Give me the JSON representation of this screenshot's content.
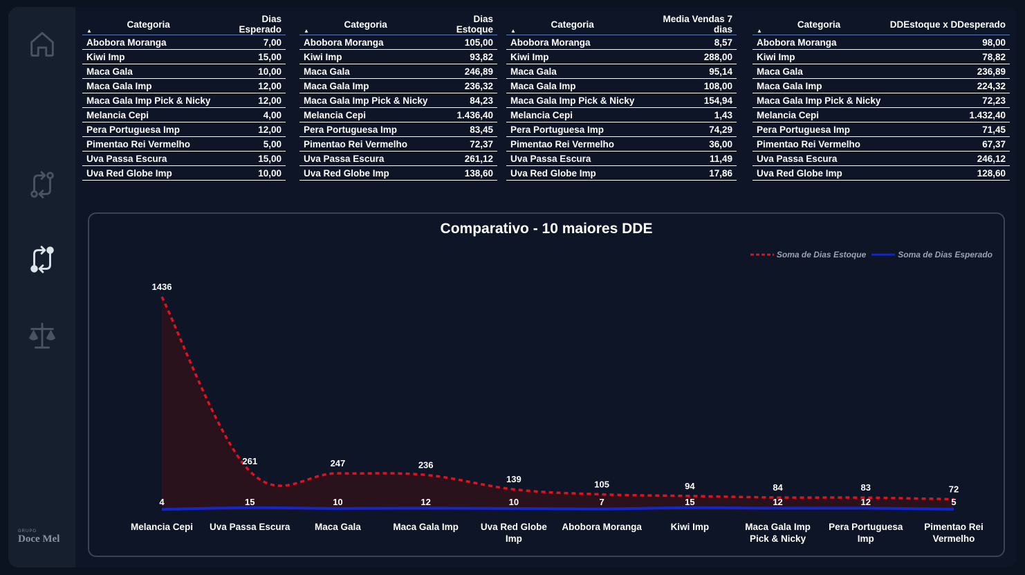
{
  "brand": {
    "small": "GRUPO",
    "name": "Doce Mel"
  },
  "sidebar": {
    "items": [
      {
        "icon": "home-icon"
      },
      {
        "icon": "swap-icon"
      },
      {
        "icon": "swap-active-icon"
      },
      {
        "icon": "scale-icon"
      }
    ]
  },
  "tables": [
    {
      "col1": "Categoria",
      "col2": "Dias Esperado",
      "rows": [
        [
          "Abobora Moranga",
          "7,00"
        ],
        [
          "Kiwi Imp",
          "15,00"
        ],
        [
          "Maca Gala",
          "10,00"
        ],
        [
          "Maca Gala Imp",
          "12,00"
        ],
        [
          "Maca Gala Imp Pick & Nicky",
          "12,00"
        ],
        [
          "Melancia Cepi",
          "4,00"
        ],
        [
          "Pera Portuguesa Imp",
          "12,00"
        ],
        [
          "Pimentao Rei Vermelho",
          "5,00"
        ],
        [
          "Uva Passa Escura",
          "15,00"
        ],
        [
          "Uva Red Globe Imp",
          "10,00"
        ]
      ]
    },
    {
      "col1": "Categoria",
      "col2": "Dias Estoque",
      "rows": [
        [
          "Abobora Moranga",
          "105,00"
        ],
        [
          "Kiwi Imp",
          "93,82"
        ],
        [
          "Maca Gala",
          "246,89"
        ],
        [
          "Maca Gala Imp",
          "236,32"
        ],
        [
          "Maca Gala Imp Pick & Nicky",
          "84,23"
        ],
        [
          "Melancia Cepi",
          "1.436,40"
        ],
        [
          "Pera Portuguesa Imp",
          "83,45"
        ],
        [
          "Pimentao Rei Vermelho",
          "72,37"
        ],
        [
          "Uva Passa Escura",
          "261,12"
        ],
        [
          "Uva Red Globe Imp",
          "138,60"
        ]
      ]
    },
    {
      "col1": "Categoria",
      "col2": "Media Vendas 7 dias",
      "rows": [
        [
          "Abobora Moranga",
          "8,57"
        ],
        [
          "Kiwi Imp",
          "288,00"
        ],
        [
          "Maca Gala",
          "95,14"
        ],
        [
          "Maca Gala Imp",
          "108,00"
        ],
        [
          "Maca Gala Imp Pick & Nicky",
          "154,94"
        ],
        [
          "Melancia Cepi",
          "1,43"
        ],
        [
          "Pera Portuguesa Imp",
          "74,29"
        ],
        [
          "Pimentao Rei Vermelho",
          "36,00"
        ],
        [
          "Uva Passa Escura",
          "11,49"
        ],
        [
          "Uva Red Globe Imp",
          "17,86"
        ]
      ]
    },
    {
      "col1": "Categoria",
      "col2": "DDEstoque x DDesperado",
      "rows": [
        [
          "Abobora Moranga",
          "98,00"
        ],
        [
          "Kiwi Imp",
          "78,82"
        ],
        [
          "Maca Gala",
          "236,89"
        ],
        [
          "Maca Gala Imp",
          "224,32"
        ],
        [
          "Maca Gala Imp Pick & Nicky",
          "72,23"
        ],
        [
          "Melancia Cepi",
          "1.432,40"
        ],
        [
          "Pera Portuguesa Imp",
          "71,45"
        ],
        [
          "Pimentao Rei Vermelho",
          "67,37"
        ],
        [
          "Uva Passa Escura",
          "246,12"
        ],
        [
          "Uva Red Globe Imp",
          "128,60"
        ]
      ]
    }
  ],
  "chart_data": {
    "type": "line",
    "title": "Comparativo - 10 maiores DDE",
    "categories": [
      "Melancia Cepi",
      "Uva Passa Escura",
      "Maca Gala",
      "Maca Gala Imp",
      "Uva Red Globe Imp",
      "Abobora Moranga",
      "Kiwi Imp",
      "Maca Gala Imp Pick & Nicky",
      "Pera Portuguesa Imp",
      "Pimentao Rei Vermelho"
    ],
    "series": [
      {
        "name": "Soma de Dias Estoque",
        "values": [
          1436,
          261,
          247,
          236,
          139,
          105,
          94,
          84,
          83,
          72
        ],
        "color": "#e3101e",
        "style": "dashed",
        "area_fill": "#2a121c"
      },
      {
        "name": "Soma de Dias Esperado",
        "values": [
          4,
          15,
          10,
          12,
          10,
          7,
          15,
          12,
          12,
          5
        ],
        "color": "#1227c9",
        "style": "solid"
      }
    ],
    "legend_position": "top-right",
    "grid": false
  }
}
